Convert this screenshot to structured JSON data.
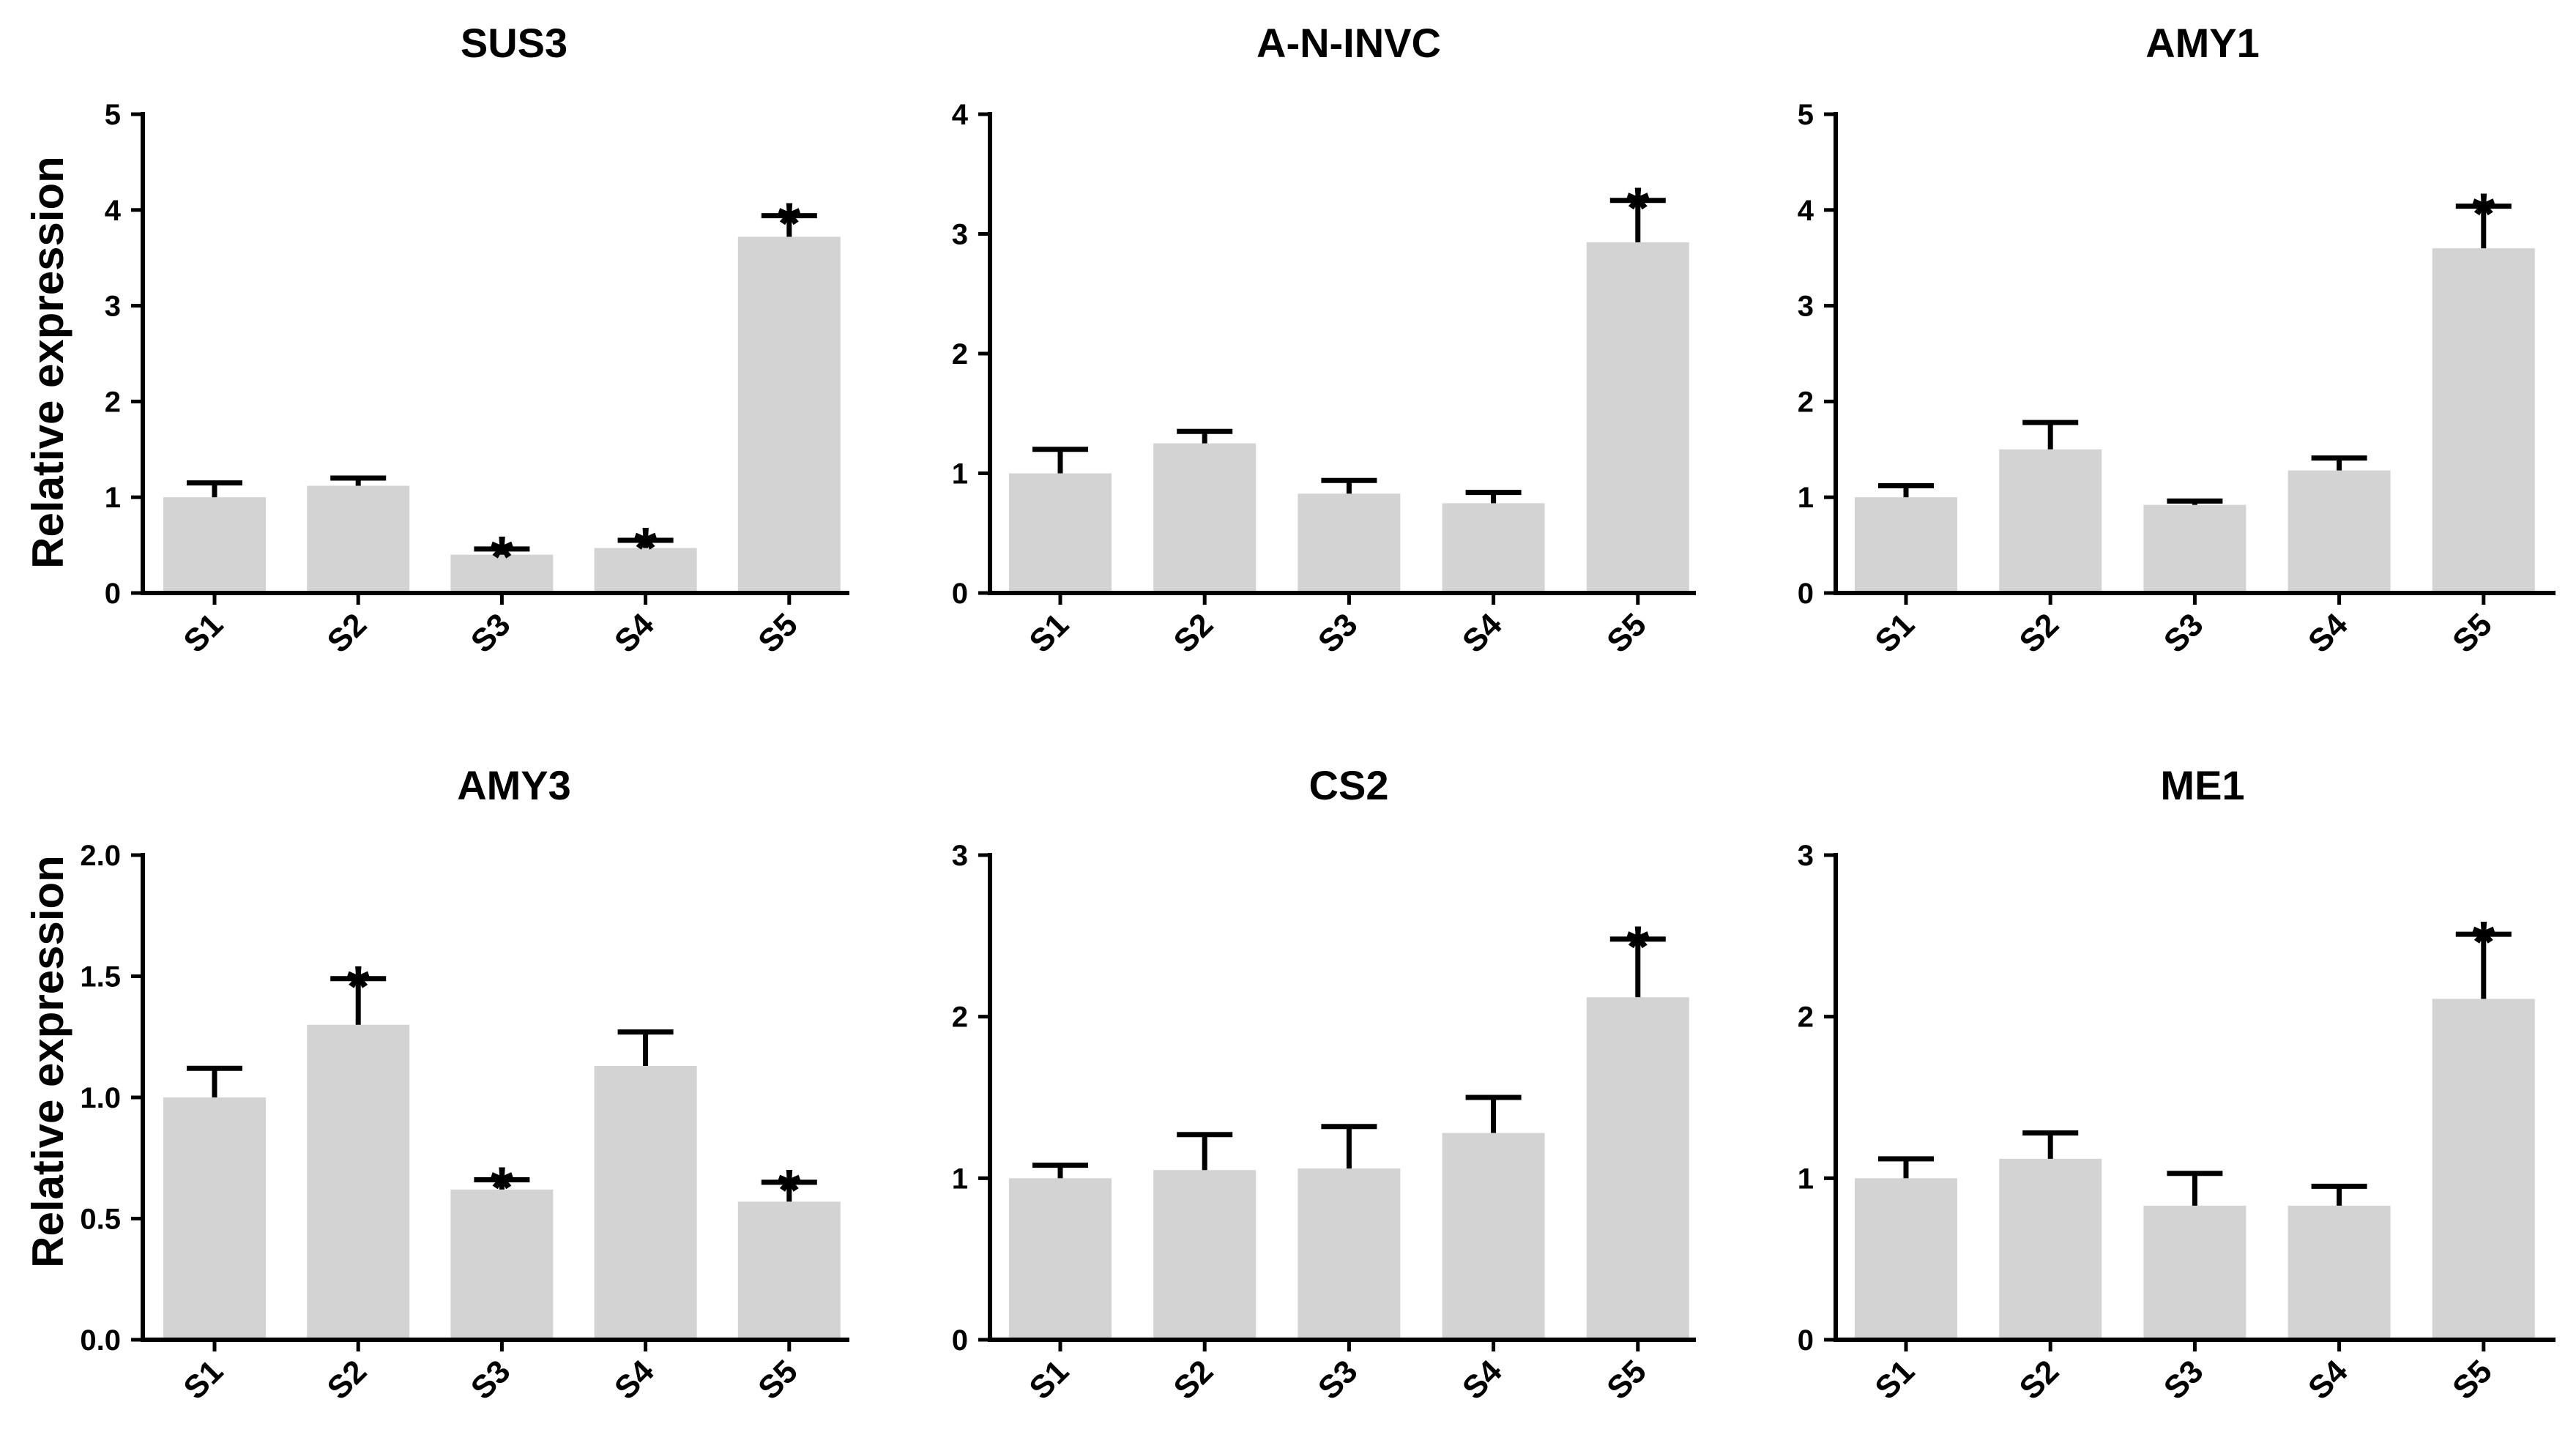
{
  "colors": {
    "bar": "#d3d3d3",
    "ink": "#000000",
    "background": "#ffffff"
  },
  "chart_data": [
    {
      "type": "bar",
      "title": "SUS3",
      "ylabel": "Relative expression",
      "xlabel": "",
      "categories": [
        "S1",
        "S2",
        "S3",
        "S4",
        "S5"
      ],
      "values": [
        1.0,
        1.12,
        0.4,
        0.47,
        3.72
      ],
      "errors": [
        0.15,
        0.08,
        0.06,
        0.08,
        0.22
      ],
      "significant": [
        false,
        false,
        true,
        true,
        true
      ],
      "ylim": [
        0,
        5
      ],
      "yticks": [
        "0",
        "1",
        "2",
        "3",
        "4",
        "5"
      ],
      "ytick_values": [
        0,
        1,
        2,
        3,
        4,
        5
      ],
      "marker": "*"
    },
    {
      "type": "bar",
      "title": "A-N-INVC",
      "ylabel": "",
      "xlabel": "",
      "categories": [
        "S1",
        "S2",
        "S3",
        "S4",
        "S5"
      ],
      "values": [
        1.0,
        1.25,
        0.83,
        0.75,
        2.93
      ],
      "errors": [
        0.2,
        0.1,
        0.11,
        0.09,
        0.35
      ],
      "significant": [
        false,
        false,
        false,
        false,
        true
      ],
      "ylim": [
        0,
        4
      ],
      "yticks": [
        "0",
        "1",
        "2",
        "3",
        "4"
      ],
      "ytick_values": [
        0,
        1,
        2,
        3,
        4
      ],
      "marker": "*"
    },
    {
      "type": "bar",
      "title": "AMY1",
      "ylabel": "",
      "xlabel": "",
      "categories": [
        "S1",
        "S2",
        "S3",
        "S4",
        "S5"
      ],
      "values": [
        1.0,
        1.5,
        0.92,
        1.28,
        3.6
      ],
      "errors": [
        0.12,
        0.28,
        0.04,
        0.13,
        0.44
      ],
      "significant": [
        false,
        false,
        false,
        false,
        true
      ],
      "ylim": [
        0,
        5
      ],
      "yticks": [
        "0",
        "1",
        "2",
        "3",
        "4",
        "5"
      ],
      "ytick_values": [
        0,
        1,
        2,
        3,
        4,
        5
      ],
      "marker": "*"
    },
    {
      "type": "bar",
      "title": "AMY3",
      "ylabel": "Relative expression",
      "xlabel": "",
      "categories": [
        "S1",
        "S2",
        "S3",
        "S4",
        "S5"
      ],
      "values": [
        1.0,
        1.3,
        0.62,
        1.13,
        0.57
      ],
      "errors": [
        0.12,
        0.19,
        0.04,
        0.14,
        0.08
      ],
      "significant": [
        false,
        true,
        true,
        false,
        true
      ],
      "ylim": [
        0,
        2
      ],
      "yticks": [
        "0.0",
        "0.5",
        "1.0",
        "1.5",
        "2.0"
      ],
      "ytick_values": [
        0,
        0.5,
        1,
        1.5,
        2
      ],
      "marker": "*"
    },
    {
      "type": "bar",
      "title": "CS2",
      "ylabel": "",
      "xlabel": "",
      "categories": [
        "S1",
        "S2",
        "S3",
        "S4",
        "S5"
      ],
      "values": [
        1.0,
        1.05,
        1.06,
        1.28,
        2.12
      ],
      "errors": [
        0.08,
        0.22,
        0.26,
        0.22,
        0.36
      ],
      "significant": [
        false,
        false,
        false,
        false,
        true
      ],
      "ylim": [
        0,
        3
      ],
      "yticks": [
        "0",
        "1",
        "2",
        "3"
      ],
      "ytick_values": [
        0,
        1,
        2,
        3
      ],
      "marker": "*"
    },
    {
      "type": "bar",
      "title": "ME1",
      "ylabel": "",
      "xlabel": "",
      "categories": [
        "S1",
        "S2",
        "S3",
        "S4",
        "S5"
      ],
      "values": [
        1.0,
        1.12,
        0.83,
        0.83,
        2.11
      ],
      "errors": [
        0.12,
        0.16,
        0.2,
        0.12,
        0.4
      ],
      "significant": [
        false,
        false,
        false,
        false,
        true
      ],
      "ylim": [
        0,
        3
      ],
      "yticks": [
        "0",
        "1",
        "2",
        "3"
      ],
      "ytick_values": [
        0,
        1,
        2,
        3
      ],
      "marker": "*"
    }
  ]
}
